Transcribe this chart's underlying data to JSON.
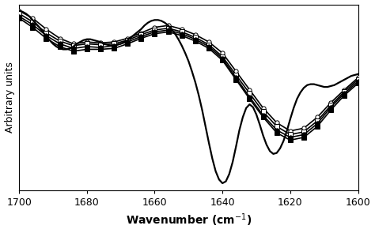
{
  "xlabel": "Wavenumber (cm$^{-1}$)",
  "ylabel": "Arbitrary units",
  "xlim_left": 1700,
  "xlim_right": 1600,
  "xticks": [
    1700,
    1680,
    1660,
    1640,
    1620,
    1600
  ],
  "smooth_line": {
    "x": [
      1700,
      1699,
      1698,
      1697,
      1696,
      1695,
      1694,
      1693,
      1692,
      1691,
      1690,
      1689,
      1688,
      1687,
      1686,
      1685,
      1684,
      1683,
      1682,
      1681,
      1680,
      1679,
      1678,
      1677,
      1676,
      1675,
      1674,
      1673,
      1672,
      1671,
      1670,
      1669,
      1668,
      1667,
      1666,
      1665,
      1664,
      1663,
      1662,
      1661,
      1660,
      1659,
      1658,
      1657,
      1656,
      1655,
      1654,
      1653,
      1652,
      1651,
      1650,
      1649,
      1648,
      1647,
      1646,
      1645,
      1644,
      1643,
      1642,
      1641,
      1640,
      1639,
      1638,
      1637,
      1636,
      1635,
      1634,
      1633,
      1632,
      1631,
      1630,
      1629,
      1628,
      1627,
      1626,
      1625,
      1624,
      1623,
      1622,
      1621,
      1620,
      1619,
      1618,
      1617,
      1616,
      1615,
      1614,
      1613,
      1612,
      1611,
      1610,
      1609,
      1608,
      1607,
      1606,
      1605,
      1604,
      1603,
      1602,
      1601,
      1600
    ],
    "y": [
      0.88,
      0.87,
      0.85,
      0.82,
      0.78,
      0.74,
      0.7,
      0.65,
      0.6,
      0.56,
      0.52,
      0.49,
      0.47,
      0.46,
      0.46,
      0.47,
      0.49,
      0.52,
      0.54,
      0.56,
      0.57,
      0.57,
      0.56,
      0.55,
      0.54,
      0.52,
      0.51,
      0.5,
      0.5,
      0.51,
      0.52,
      0.54,
      0.56,
      0.59,
      0.62,
      0.65,
      0.68,
      0.72,
      0.75,
      0.77,
      0.78,
      0.78,
      0.77,
      0.75,
      0.72,
      0.68,
      0.63,
      0.57,
      0.5,
      0.42,
      0.33,
      0.22,
      0.1,
      -0.04,
      -0.2,
      -0.38,
      -0.56,
      -0.73,
      -0.87,
      -0.96,
      -1.0,
      -0.98,
      -0.9,
      -0.77,
      -0.6,
      -0.42,
      -0.28,
      -0.18,
      -0.14,
      -0.17,
      -0.25,
      -0.36,
      -0.48,
      -0.58,
      -0.65,
      -0.68,
      -0.67,
      -0.62,
      -0.54,
      -0.43,
      -0.3,
      -0.18,
      -0.08,
      -0.01,
      0.04,
      0.07,
      0.08,
      0.08,
      0.07,
      0.06,
      0.05,
      0.05,
      0.06,
      0.07,
      0.09,
      0.11,
      0.13,
      0.15,
      0.17,
      0.18,
      0.19
    ]
  },
  "marker_lines": [
    {
      "marker": "o",
      "mfc": "white",
      "x": [
        1700,
        1696,
        1692,
        1688,
        1684,
        1680,
        1676,
        1672,
        1668,
        1664,
        1660,
        1656,
        1652,
        1648,
        1644,
        1640,
        1636,
        1632,
        1628,
        1624,
        1620,
        1616,
        1612,
        1608,
        1604,
        1600
      ],
      "y": [
        0.88,
        0.8,
        0.68,
        0.58,
        0.52,
        0.54,
        0.53,
        0.54,
        0.58,
        0.64,
        0.7,
        0.72,
        0.68,
        0.62,
        0.54,
        0.42,
        0.22,
        0.02,
        -0.18,
        -0.34,
        -0.43,
        -0.4,
        -0.28,
        -0.12,
        0.02,
        0.15
      ]
    },
    {
      "marker": "s",
      "mfc": "white",
      "x": [
        1700,
        1696,
        1692,
        1688,
        1684,
        1680,
        1676,
        1672,
        1668,
        1664,
        1660,
        1656,
        1652,
        1648,
        1644,
        1640,
        1636,
        1632,
        1628,
        1624,
        1620,
        1616,
        1612,
        1608,
        1604,
        1600
      ],
      "y": [
        0.85,
        0.76,
        0.64,
        0.55,
        0.5,
        0.52,
        0.51,
        0.52,
        0.56,
        0.62,
        0.67,
        0.69,
        0.65,
        0.59,
        0.51,
        0.38,
        0.18,
        -0.02,
        -0.22,
        -0.38,
        -0.47,
        -0.44,
        -0.32,
        -0.15,
        0.0,
        0.13
      ]
    },
    {
      "marker": "o",
      "mfc": "black",
      "x": [
        1700,
        1696,
        1692,
        1688,
        1684,
        1680,
        1676,
        1672,
        1668,
        1664,
        1660,
        1656,
        1652,
        1648,
        1644,
        1640,
        1636,
        1632,
        1628,
        1624,
        1620,
        1616,
        1612,
        1608,
        1604,
        1600
      ],
      "y": [
        0.82,
        0.73,
        0.61,
        0.52,
        0.47,
        0.49,
        0.48,
        0.5,
        0.54,
        0.6,
        0.65,
        0.67,
        0.63,
        0.57,
        0.49,
        0.36,
        0.15,
        -0.06,
        -0.26,
        -0.42,
        -0.5,
        -0.47,
        -0.35,
        -0.17,
        -0.02,
        0.11
      ]
    },
    {
      "marker": "s",
      "mfc": "black",
      "x": [
        1700,
        1696,
        1692,
        1688,
        1684,
        1680,
        1676,
        1672,
        1668,
        1664,
        1660,
        1656,
        1652,
        1648,
        1644,
        1640,
        1636,
        1632,
        1628,
        1624,
        1620,
        1616,
        1612,
        1608,
        1604,
        1600
      ],
      "y": [
        0.8,
        0.7,
        0.58,
        0.49,
        0.44,
        0.46,
        0.46,
        0.47,
        0.52,
        0.58,
        0.63,
        0.65,
        0.61,
        0.55,
        0.47,
        0.34,
        0.13,
        -0.08,
        -0.28,
        -0.45,
        -0.53,
        -0.5,
        -0.38,
        -0.2,
        -0.04,
        0.09
      ]
    }
  ]
}
